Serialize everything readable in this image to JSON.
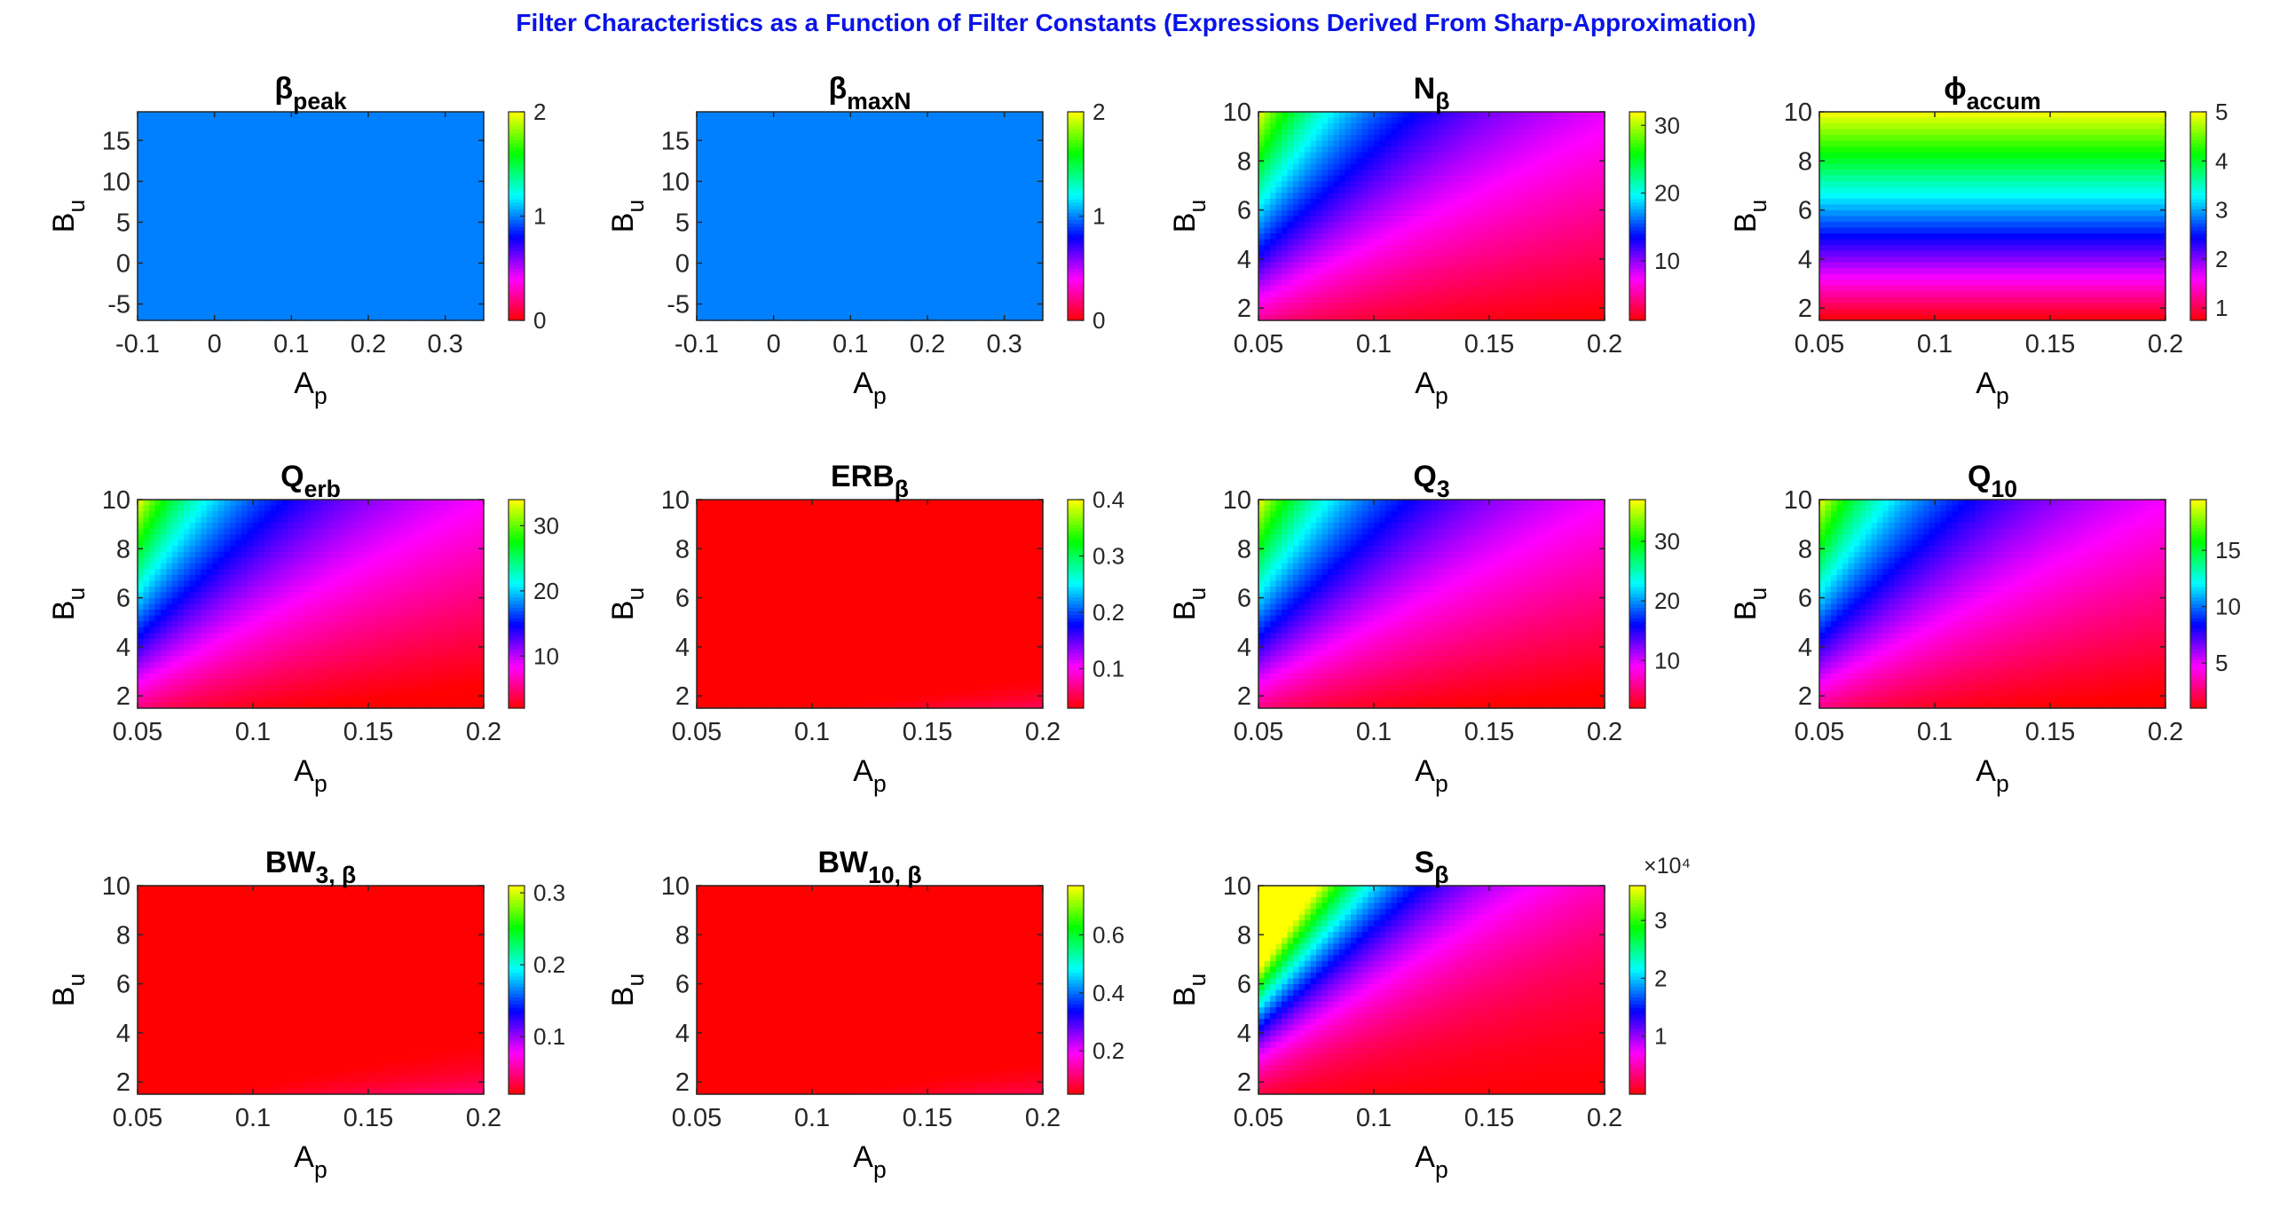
{
  "figure_title": "Filter Characteristics as a Function of Filter Constants (Expressions Derived From Sharp-Approximation)",
  "colors": {
    "title": "#0a14e6"
  },
  "chart_data": [
    {
      "type": "heatmap",
      "id": "beta-peak",
      "title": {
        "main": "β",
        "sub": "peak"
      },
      "xlabel": {
        "main": "A",
        "sub": "p"
      },
      "ylabel": {
        "main": "B",
        "sub": "u"
      },
      "xlim": [
        -0.1,
        0.35
      ],
      "ylim": [
        -7,
        18.5
      ],
      "xticks": [
        -0.1,
        0,
        0.1,
        0.2,
        0.3
      ],
      "xtick_labels": [
        "-0.1",
        "0",
        "0.1",
        "0.2",
        "0.3"
      ],
      "yticks": [
        -5,
        0,
        5,
        10,
        15
      ],
      "ytick_labels": [
        "-5",
        "0",
        "5",
        "10",
        "15"
      ],
      "colorbar": {
        "limits": [
          0,
          2
        ],
        "ticks": [
          0,
          1,
          2
        ],
        "tick_labels": [
          "0",
          "1",
          "2"
        ],
        "exponent": ""
      },
      "field": "constant",
      "value": 1
    },
    {
      "type": "heatmap",
      "id": "beta-maxn",
      "title": {
        "main": "β",
        "sub": "maxN"
      },
      "xlabel": {
        "main": "A",
        "sub": "p"
      },
      "ylabel": {
        "main": "B",
        "sub": "u"
      },
      "xlim": [
        -0.1,
        0.35
      ],
      "ylim": [
        -7,
        18.5
      ],
      "xticks": [
        -0.1,
        0,
        0.1,
        0.2,
        0.3
      ],
      "xtick_labels": [
        "-0.1",
        "0",
        "0.1",
        "0.2",
        "0.3"
      ],
      "yticks": [
        -5,
        0,
        5,
        10,
        15
      ],
      "ytick_labels": [
        "-5",
        "0",
        "5",
        "10",
        "15"
      ],
      "colorbar": {
        "limits": [
          0,
          2
        ],
        "ticks": [
          0,
          1,
          2
        ],
        "tick_labels": [
          "0",
          "1",
          "2"
        ],
        "exponent": ""
      },
      "field": "constant",
      "value": 1
    },
    {
      "type": "heatmap",
      "id": "n-beta",
      "title": {
        "main": "N",
        "sub": "β"
      },
      "xlabel": {
        "main": "A",
        "sub": "p"
      },
      "ylabel": {
        "main": "B",
        "sub": "u"
      },
      "xlim": [
        0.05,
        0.2
      ],
      "ylim": [
        1.5,
        10
      ],
      "xticks": [
        0.05,
        0.1,
        0.15,
        0.2
      ],
      "xtick_labels": [
        "0.05",
        "0.1",
        "0.15",
        "0.2"
      ],
      "yticks": [
        2,
        4,
        6,
        8,
        10
      ],
      "ytick_labels": [
        "2",
        "4",
        "6",
        "8",
        "10"
      ],
      "colorbar": {
        "limits": [
          1.2,
          32
        ],
        "ticks": [
          10,
          20,
          30
        ],
        "tick_labels": [
          "10",
          "20",
          "30"
        ],
        "exponent": ""
      },
      "field": "ratio",
      "power": 1,
      "k": 0.16
    },
    {
      "type": "heatmap",
      "id": "phi-accum",
      "title": {
        "main": "ϕ",
        "sub": "accum"
      },
      "xlabel": {
        "main": "A",
        "sub": "p"
      },
      "ylabel": {
        "main": "B",
        "sub": "u"
      },
      "xlim": [
        0.05,
        0.2
      ],
      "ylim": [
        1.5,
        10
      ],
      "xticks": [
        0.05,
        0.1,
        0.15,
        0.2
      ],
      "xtick_labels": [
        "0.05",
        "0.1",
        "0.15",
        "0.2"
      ],
      "yticks": [
        2,
        4,
        6,
        8,
        10
      ],
      "ytick_labels": [
        "2",
        "4",
        "6",
        "8",
        "10"
      ],
      "colorbar": {
        "limits": [
          0.75,
          5
        ],
        "ticks": [
          1,
          2,
          3,
          4,
          5
        ],
        "tick_labels": [
          "1",
          "2",
          "3",
          "4",
          "5"
        ],
        "exponent": ""
      },
      "field": "linear_y",
      "slope": 0.5,
      "offset": 0
    },
    {
      "type": "heatmap",
      "id": "q-erb",
      "title": {
        "main": "Q",
        "sub": "erb"
      },
      "xlabel": {
        "main": "A",
        "sub": "p"
      },
      "ylabel": {
        "main": "B",
        "sub": "u"
      },
      "xlim": [
        0.05,
        0.2
      ],
      "ylim": [
        1.5,
        10
      ],
      "xticks": [
        0.05,
        0.1,
        0.15,
        0.2
      ],
      "xtick_labels": [
        "0.05",
        "0.1",
        "0.15",
        "0.2"
      ],
      "yticks": [
        2,
        4,
        6,
        8,
        10
      ],
      "ytick_labels": [
        "2",
        "4",
        "6",
        "8",
        "10"
      ],
      "colorbar": {
        "limits": [
          2,
          34
        ],
        "ticks": [
          10,
          20,
          30
        ],
        "tick_labels": [
          "10",
          "20",
          "30"
        ],
        "exponent": ""
      },
      "field": "ratio",
      "power": 1,
      "k": 0.17
    },
    {
      "type": "heatmap",
      "id": "erb-beta",
      "title": {
        "main": "ERB",
        "sub": "β"
      },
      "xlabel": {
        "main": "A",
        "sub": "p"
      },
      "ylabel": {
        "main": "B",
        "sub": "u"
      },
      "xlim": [
        0.05,
        0.2
      ],
      "ylim": [
        1.5,
        10
      ],
      "xticks": [
        0.05,
        0.1,
        0.15,
        0.2
      ],
      "xtick_labels": [
        "0.05",
        "0.1",
        "0.15",
        "0.2"
      ],
      "yticks": [
        2,
        4,
        6,
        8,
        10
      ],
      "ytick_labels": [
        "2",
        "4",
        "6",
        "8",
        "10"
      ],
      "colorbar": {
        "limits": [
          0.03,
          0.4
        ],
        "ticks": [
          0.1,
          0.2,
          0.3,
          0.4
        ],
        "tick_labels": [
          "0.1",
          "0.2",
          "0.3",
          "0.4"
        ],
        "exponent": ""
      },
      "field": "inverse_ratio",
      "k": 0.42
    },
    {
      "type": "heatmap",
      "id": "q-3",
      "title": {
        "main": "Q",
        "sub": "3"
      },
      "xlabel": {
        "main": "A",
        "sub": "p"
      },
      "ylabel": {
        "main": "B",
        "sub": "u"
      },
      "xlim": [
        0.05,
        0.2
      ],
      "ylim": [
        1.5,
        10
      ],
      "xticks": [
        0.05,
        0.1,
        0.15,
        0.2
      ],
      "xtick_labels": [
        "0.05",
        "0.1",
        "0.15",
        "0.2"
      ],
      "yticks": [
        2,
        4,
        6,
        8,
        10
      ],
      "ytick_labels": [
        "2",
        "4",
        "6",
        "8",
        "10"
      ],
      "colorbar": {
        "limits": [
          2,
          37
        ],
        "ticks": [
          10,
          20,
          30
        ],
        "tick_labels": [
          "10",
          "20",
          "30"
        ],
        "exponent": ""
      },
      "field": "ratio",
      "power": 1,
      "k": 0.185
    },
    {
      "type": "heatmap",
      "id": "q-10",
      "title": {
        "main": "Q",
        "sub": "10"
      },
      "xlabel": {
        "main": "A",
        "sub": "p"
      },
      "ylabel": {
        "main": "B",
        "sub": "u"
      },
      "xlim": [
        0.05,
        0.2
      ],
      "ylim": [
        1.5,
        10
      ],
      "xticks": [
        0.05,
        0.1,
        0.15,
        0.2
      ],
      "xtick_labels": [
        "0.05",
        "0.1",
        "0.15",
        "0.2"
      ],
      "yticks": [
        2,
        4,
        6,
        8,
        10
      ],
      "ytick_labels": [
        "2",
        "4",
        "6",
        "8",
        "10"
      ],
      "colorbar": {
        "limits": [
          1,
          19.5
        ],
        "ticks": [
          5,
          10,
          15
        ],
        "tick_labels": [
          "5",
          "10",
          "15"
        ],
        "exponent": ""
      },
      "field": "ratio",
      "power": 1,
      "k": 0.097
    },
    {
      "type": "heatmap",
      "id": "bw-3-beta",
      "title": {
        "main": "BW",
        "sub": "3, β"
      },
      "xlabel": {
        "main": "A",
        "sub": "p"
      },
      "ylabel": {
        "main": "B",
        "sub": "u"
      },
      "xlim": [
        0.05,
        0.2
      ],
      "ylim": [
        1.5,
        10
      ],
      "xticks": [
        0.05,
        0.1,
        0.15,
        0.2
      ],
      "xtick_labels": [
        "0.05",
        "0.1",
        "0.15",
        "0.2"
      ],
      "yticks": [
        2,
        4,
        6,
        8,
        10
      ],
      "ytick_labels": [
        "2",
        "4",
        "6",
        "8",
        "10"
      ],
      "colorbar": {
        "limits": [
          0.02,
          0.31
        ],
        "ticks": [
          0.1,
          0.2,
          0.3
        ],
        "tick_labels": [
          "0.1",
          "0.2",
          "0.3"
        ],
        "exponent": ""
      },
      "field": "inverse_ratio",
      "k": 0.37
    },
    {
      "type": "heatmap",
      "id": "bw-10-beta",
      "title": {
        "main": "BW",
        "sub": "10, β"
      },
      "xlabel": {
        "main": "A",
        "sub": "p"
      },
      "ylabel": {
        "main": "B",
        "sub": "u"
      },
      "xlim": [
        0.05,
        0.2
      ],
      "ylim": [
        1.5,
        10
      ],
      "xticks": [
        0.05,
        0.1,
        0.15,
        0.2
      ],
      "xtick_labels": [
        "0.05",
        "0.1",
        "0.15",
        "0.2"
      ],
      "yticks": [
        2,
        4,
        6,
        8,
        10
      ],
      "ytick_labels": [
        "2",
        "4",
        "6",
        "8",
        "10"
      ],
      "colorbar": {
        "limits": [
          0.05,
          0.77
        ],
        "ticks": [
          0.2,
          0.4,
          0.6
        ],
        "tick_labels": [
          "0.2",
          "0.4",
          "0.6"
        ],
        "exponent": ""
      },
      "field": "inverse_ratio",
      "k": 0.72
    },
    {
      "type": "heatmap",
      "id": "s-beta",
      "title": {
        "main": "S",
        "sub": "β"
      },
      "xlabel": {
        "main": "A",
        "sub": "p"
      },
      "ylabel": {
        "main": "B",
        "sub": "u"
      },
      "xlim": [
        0.05,
        0.2
      ],
      "ylim": [
        1.5,
        10
      ],
      "xticks": [
        0.05,
        0.1,
        0.15,
        0.2
      ],
      "xtick_labels": [
        "0.05",
        "0.1",
        "0.15",
        "0.2"
      ],
      "yticks": [
        2,
        4,
        6,
        8,
        10
      ],
      "ytick_labels": [
        "2",
        "4",
        "6",
        "8",
        "10"
      ],
      "colorbar": {
        "limits": [
          0,
          3.6
        ],
        "ticks": [
          1,
          2,
          3
        ],
        "tick_labels": [
          "1",
          "2",
          "3"
        ],
        "exponent": "×10⁴"
      },
      "field": "ratio",
      "power": 2,
      "k": 0.0145
    }
  ]
}
